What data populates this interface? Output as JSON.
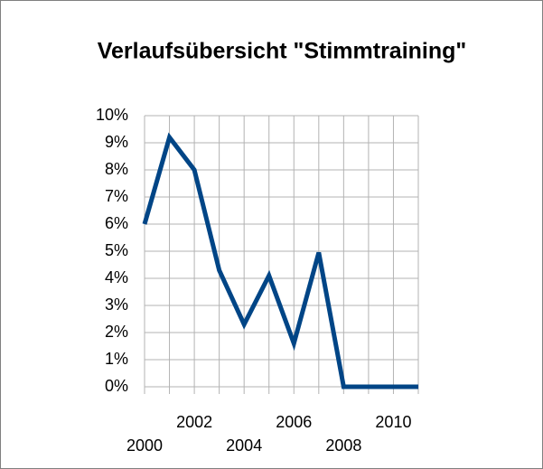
{
  "chart_data": {
    "type": "line",
    "title": "Verlaufsübersicht \"Stimmtraining\"",
    "categories": [
      "2000",
      null,
      "2002",
      null,
      "2004",
      null,
      "2006",
      null,
      "2008",
      null,
      "2010",
      null
    ],
    "series": [
      {
        "name": null,
        "color": "#004586",
        "values": [
          6.0,
          9.2,
          8.0,
          4.3,
          2.3,
          4.1,
          1.6,
          4.95,
          0,
          0,
          0,
          0
        ]
      }
    ],
    "ylim": [
      0,
      10
    ],
    "yticks": [
      {
        "value": 0,
        "label": "0%"
      },
      {
        "value": 1,
        "label": "1%"
      },
      {
        "value": 2,
        "label": "2%"
      },
      {
        "value": 3,
        "label": "3%"
      },
      {
        "value": 4,
        "label": "4%"
      },
      {
        "value": 5,
        "label": "5%"
      },
      {
        "value": 6,
        "label": "6%"
      },
      {
        "value": 7,
        "label": "7%"
      },
      {
        "value": 8,
        "label": "8%"
      },
      {
        "value": 9,
        "label": "9%"
      },
      {
        "value": 10,
        "label": "10%"
      }
    ],
    "grid": true
  }
}
